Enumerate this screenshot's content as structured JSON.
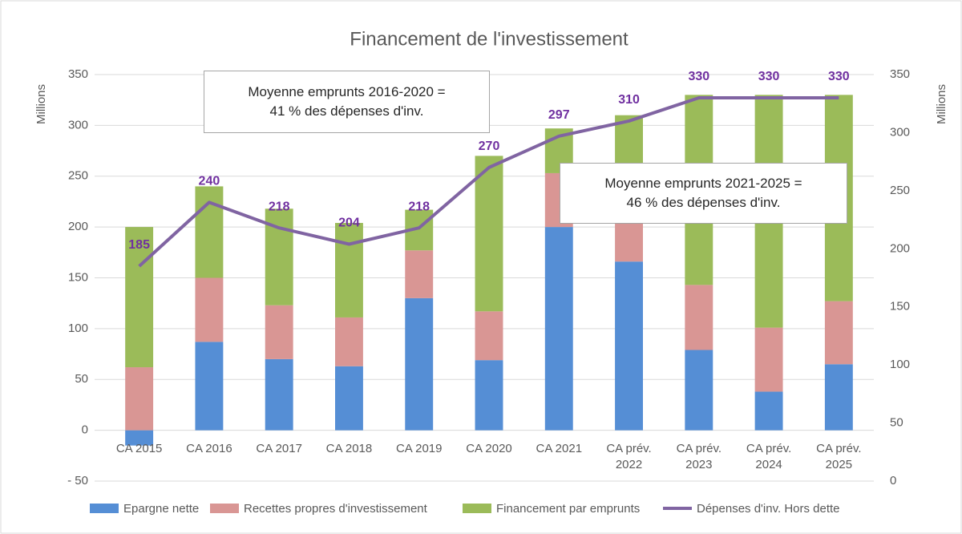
{
  "chart_data": {
    "type": "bar",
    "title": "Financement de l'investissement",
    "y_label": "Millions",
    "y2_label": "Millions",
    "categories": [
      "CA 2015",
      "CA 2016",
      "CA 2017",
      "CA 2018",
      "CA 2019",
      "CA 2020",
      "CA 2021",
      "CA prév. 2022",
      "CA prév. 2023",
      "CA prév. 2024",
      "CA prév. 2025"
    ],
    "series": [
      {
        "name": "Epargne nette",
        "color": "#558ed5",
        "values": [
          -15,
          87,
          70,
          63,
          130,
          69,
          200,
          166,
          79,
          38,
          65
        ]
      },
      {
        "name": "Recettes propres d'investissement",
        "color": "#d99694",
        "values": [
          62,
          63,
          53,
          48,
          47,
          48,
          53,
          64,
          64,
          63,
          62
        ]
      },
      {
        "name": "Financement par emprunts",
        "color": "#9bbb59",
        "values": [
          138,
          90,
          95,
          93,
          40,
          153,
          44,
          80,
          187,
          229,
          203
        ]
      },
      {
        "name": "Dépenses d'inv. Hors dette",
        "color": "#8064a2",
        "type": "line",
        "axis": "y2",
        "label_color": "#7030a0",
        "values": [
          185,
          240,
          218,
          204,
          218,
          270,
          297,
          310,
          330,
          330,
          330
        ]
      }
    ],
    "ylim": [
      -50,
      350
    ],
    "yticks": [
      {
        "value": -50,
        "label": "- 50"
      },
      0,
      50,
      100,
      150,
      200,
      250,
      300,
      350
    ],
    "y2lim": [
      0,
      350
    ],
    "y2ticks": [
      0,
      50,
      100,
      150,
      200,
      250,
      300,
      350
    ],
    "grid": true,
    "legend": "bottom",
    "annotations": [
      "Moyenne emprunts 2016-2020 =\n41 % des dépenses d'inv.",
      "Moyenne emprunts 2021-2025 =\n46 % des dépenses d'inv."
    ]
  }
}
